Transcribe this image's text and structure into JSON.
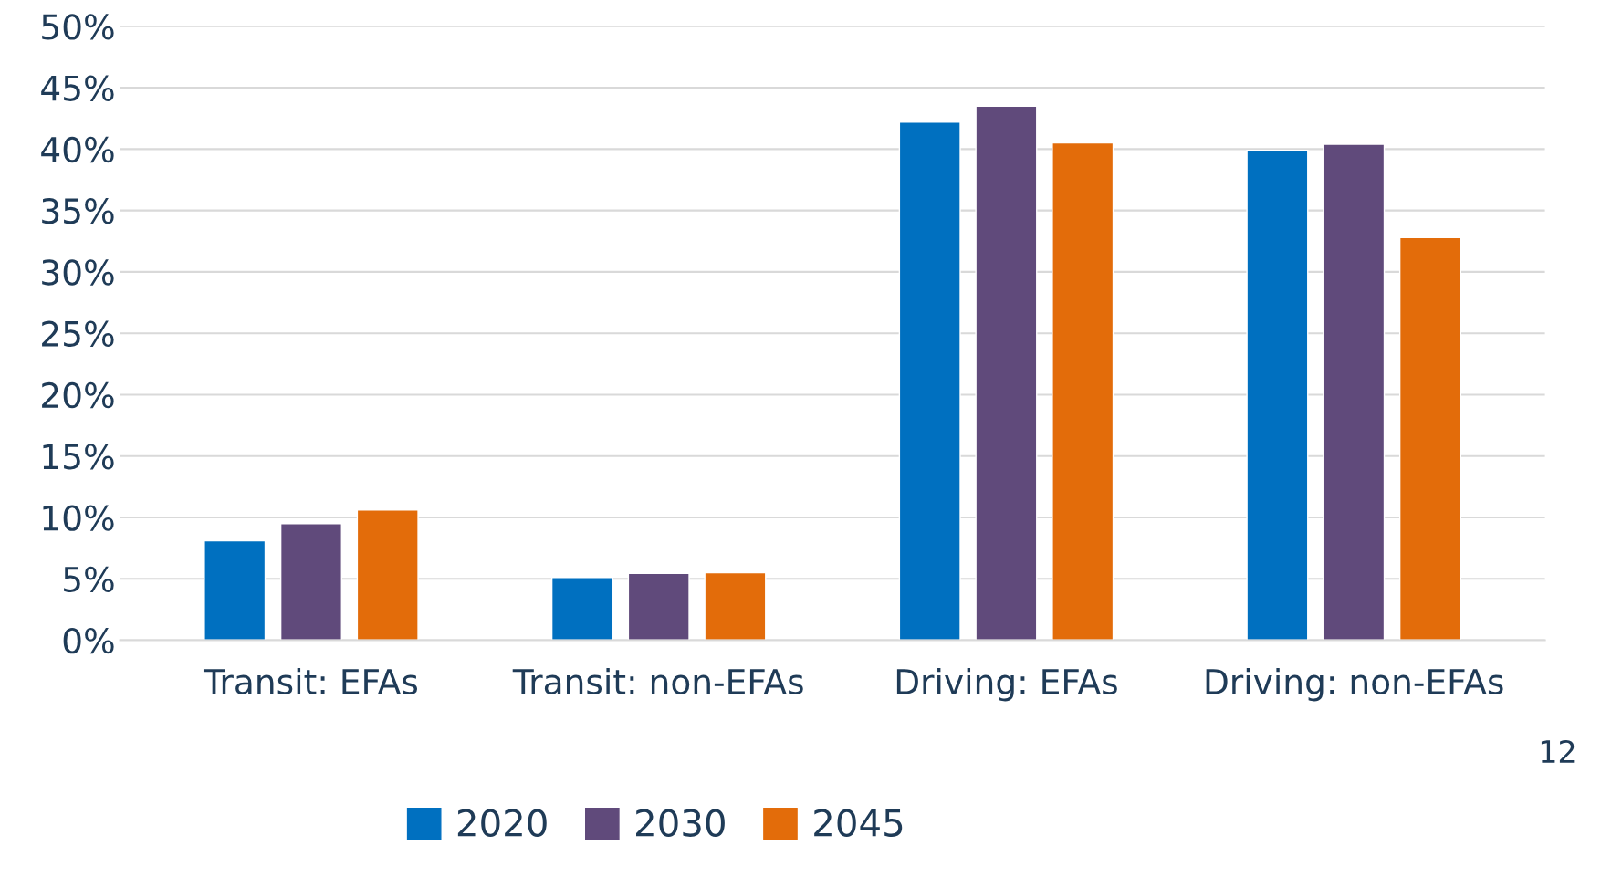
{
  "chart_data": {
    "type": "bar",
    "categories": [
      "Transit: EFAs",
      "Transit: non-EFAs",
      "Driving: EFAs",
      "Driving: non-EFAs"
    ],
    "series": [
      {
        "name": "2020",
        "color": "#0070c0",
        "values": [
          8.1,
          5.1,
          42.2,
          39.9
        ]
      },
      {
        "name": "2030",
        "color": "#604a7b",
        "values": [
          9.5,
          5.45,
          43.5,
          40.4
        ]
      },
      {
        "name": "2045",
        "color": "#e36c0a",
        "values": [
          10.6,
          5.5,
          40.5,
          32.8
        ]
      }
    ],
    "ylim": [
      0,
      50
    ],
    "yticks": [
      {
        "value": 0,
        "label": "0%"
      },
      {
        "value": 5,
        "label": "5%"
      },
      {
        "value": 10,
        "label": "10%"
      },
      {
        "value": 15,
        "label": "15%"
      },
      {
        "value": 20,
        "label": "20%"
      },
      {
        "value": 25,
        "label": "25%"
      },
      {
        "value": 30,
        "label": "30%"
      },
      {
        "value": 35,
        "label": "35%"
      },
      {
        "value": 40,
        "label": "40%"
      },
      {
        "value": 45,
        "label": "45%"
      },
      {
        "value": 50,
        "label": "50%"
      }
    ],
    "grid": "y",
    "legend": "bottom",
    "annotations": [
      "12"
    ]
  }
}
